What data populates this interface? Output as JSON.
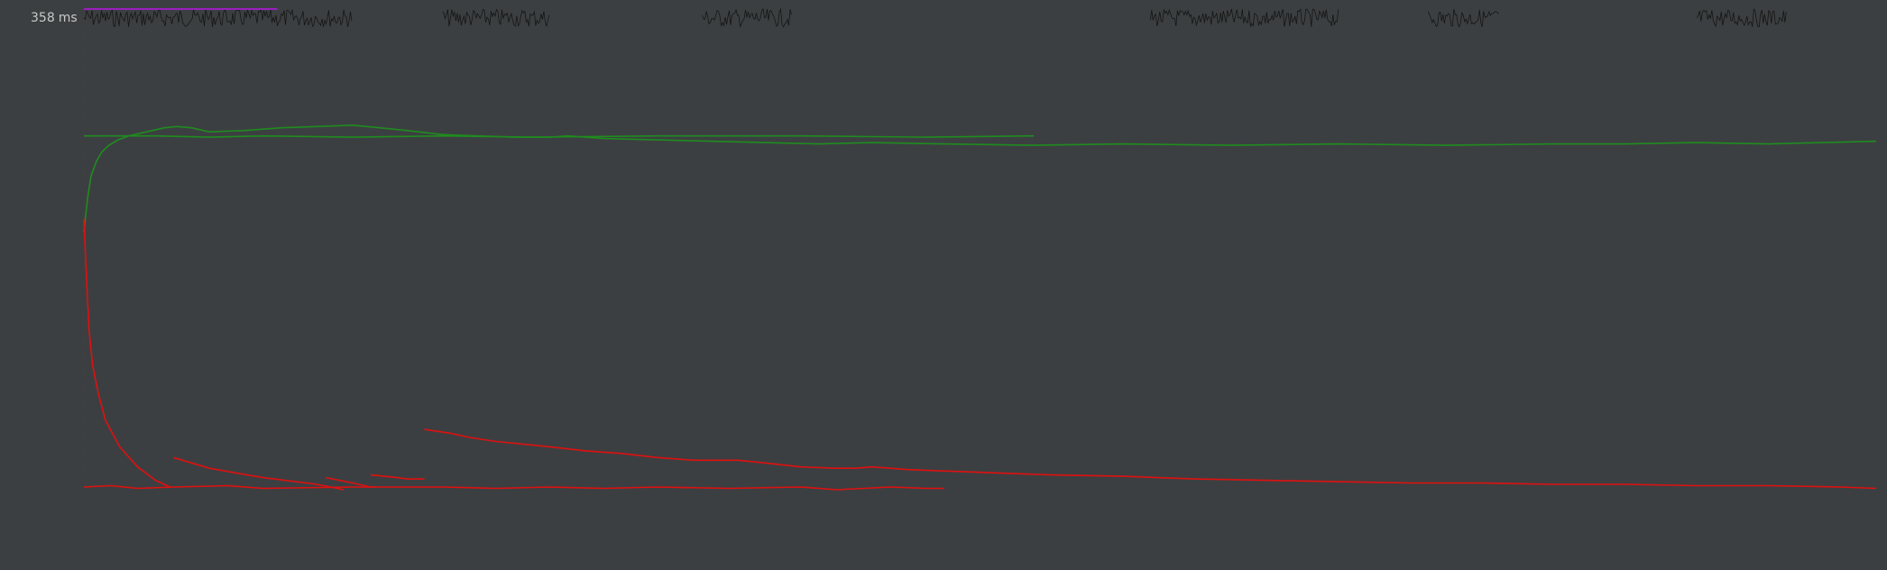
{
  "chart_data": {
    "type": "line",
    "y_axis": {
      "max_label": "358",
      "unit": "ms",
      "ylim": [
        0,
        358
      ]
    },
    "x_axis": {
      "xlim": [
        0,
        1000
      ],
      "tick_labels": []
    },
    "grid": false,
    "legend": "none",
    "colors": {
      "background": "#3c3f41",
      "green": "#1f8c1f",
      "red": "#e01010",
      "purple": "#9b1fbf",
      "noise": "#151515",
      "label": "#c8c8c8"
    },
    "series": [
      {
        "color": "green",
        "points": [
          [
            0,
            262
          ],
          [
            15,
            262
          ],
          [
            40,
            262
          ],
          [
            70,
            261
          ],
          [
            100,
            262
          ],
          [
            150,
            261
          ],
          [
            200,
            262
          ],
          [
            250,
            261
          ],
          [
            320,
            262
          ],
          [
            400,
            262
          ],
          [
            470,
            261
          ],
          [
            530,
            262
          ]
        ]
      },
      {
        "color": "green",
        "points": [
          [
            0,
            190
          ],
          [
            2,
            215
          ],
          [
            4,
            232
          ],
          [
            7,
            243
          ],
          [
            10,
            250
          ],
          [
            14,
            255
          ],
          [
            19,
            259
          ],
          [
            25,
            262
          ],
          [
            35,
            265
          ],
          [
            45,
            268
          ],
          [
            52,
            269
          ],
          [
            60,
            268
          ],
          [
            70,
            265
          ],
          [
            90,
            266
          ],
          [
            110,
            268
          ],
          [
            130,
            269
          ],
          [
            150,
            270
          ],
          [
            165,
            268
          ],
          [
            180,
            266
          ],
          [
            200,
            263
          ],
          [
            220,
            262
          ],
          [
            240,
            261
          ],
          [
            260,
            261
          ],
          [
            270,
            262
          ],
          [
            290,
            260
          ],
          [
            320,
            259
          ],
          [
            350,
            258
          ],
          [
            380,
            257
          ],
          [
            410,
            256
          ],
          [
            440,
            257
          ],
          [
            480,
            256
          ],
          [
            530,
            255
          ],
          [
            580,
            256
          ],
          [
            640,
            255
          ],
          [
            700,
            256
          ],
          [
            760,
            255
          ],
          [
            820,
            256
          ],
          [
            860,
            256
          ],
          [
            900,
            257
          ],
          [
            940,
            256
          ],
          [
            970,
            257
          ],
          [
            1000,
            258
          ]
        ]
      },
      {
        "color": "red",
        "points": [
          [
            0,
            0
          ],
          [
            15,
            1
          ],
          [
            30,
            -1
          ],
          [
            50,
            0
          ],
          [
            80,
            1
          ],
          [
            100,
            -1
          ],
          [
            150,
            0
          ],
          [
            200,
            0
          ],
          [
            230,
            -1
          ],
          [
            260,
            0
          ],
          [
            290,
            -1
          ],
          [
            320,
            0
          ],
          [
            360,
            -1
          ],
          [
            400,
            0
          ],
          [
            420,
            -2
          ],
          [
            450,
            0
          ],
          [
            470,
            -1
          ],
          [
            480,
            -1
          ]
        ]
      },
      {
        "color": "red",
        "points": [
          [
            0,
            200
          ],
          [
            1,
            170
          ],
          [
            2,
            140
          ],
          [
            3,
            115
          ],
          [
            5,
            90
          ],
          [
            8,
            70
          ],
          [
            12,
            50
          ],
          [
            20,
            30
          ],
          [
            30,
            15
          ],
          [
            40,
            5
          ],
          [
            48,
            0
          ]
        ]
      },
      {
        "color": "red",
        "points": [
          [
            50,
            22
          ],
          [
            70,
            14
          ],
          [
            100,
            7
          ],
          [
            130,
            2
          ],
          [
            145,
            -2
          ]
        ]
      },
      {
        "color": "red",
        "points": [
          [
            135,
            7
          ],
          [
            150,
            3
          ],
          [
            160,
            0
          ],
          [
            163,
            0
          ]
        ]
      },
      {
        "color": "red",
        "points": [
          [
            160,
            9
          ],
          [
            175,
            7
          ],
          [
            180,
            6
          ],
          [
            190,
            6
          ]
        ]
      },
      {
        "color": "red",
        "points": [
          [
            190,
            43
          ],
          [
            205,
            40
          ],
          [
            215,
            37
          ],
          [
            230,
            34
          ],
          [
            260,
            30
          ],
          [
            280,
            27
          ],
          [
            300,
            25
          ],
          [
            320,
            22
          ],
          [
            340,
            20
          ],
          [
            365,
            20
          ],
          [
            380,
            18
          ],
          [
            400,
            15
          ],
          [
            420,
            14
          ],
          [
            430,
            14
          ],
          [
            440,
            15
          ],
          [
            460,
            13
          ],
          [
            500,
            11
          ],
          [
            540,
            9
          ],
          [
            580,
            8
          ],
          [
            620,
            6
          ],
          [
            660,
            5
          ],
          [
            700,
            4
          ],
          [
            740,
            3
          ],
          [
            780,
            3
          ],
          [
            820,
            2
          ],
          [
            860,
            2
          ],
          [
            900,
            1
          ],
          [
            940,
            1
          ],
          [
            980,
            0
          ],
          [
            1000,
            -1
          ]
        ]
      }
    ]
  }
}
